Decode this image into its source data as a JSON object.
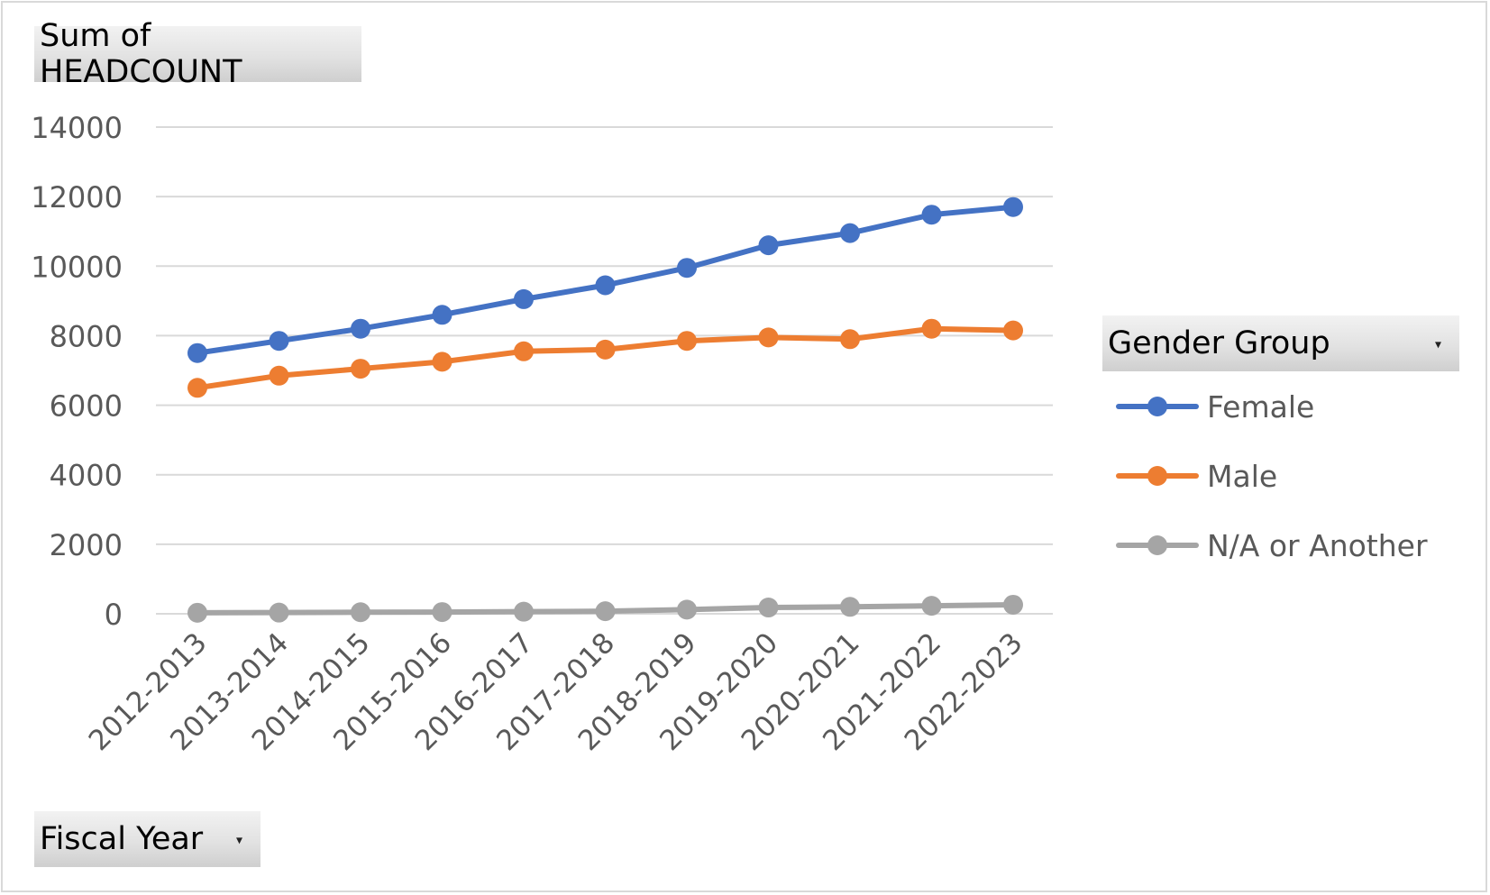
{
  "chart_data": {
    "type": "line",
    "value_field": "Sum of HEADCOUNT",
    "axis_field": "Fiscal Year",
    "legend_field": "Gender Group",
    "categories": [
      "2012-2013",
      "2013-2014",
      "2014-2015",
      "2015-2016",
      "2016-2017",
      "2017-2018",
      "2018-2019",
      "2019-2020",
      "2020-2021",
      "2021-2022",
      "2022-2023"
    ],
    "series": [
      {
        "name": "Female",
        "color": "#4472c4",
        "values": [
          7500,
          7850,
          8200,
          8600,
          9050,
          9450,
          9950,
          10600,
          10950,
          11480,
          11700
        ]
      },
      {
        "name": "Male",
        "color": "#ed7d31",
        "values": [
          6500,
          6850,
          7050,
          7250,
          7550,
          7600,
          7850,
          7950,
          7900,
          8200,
          8150
        ]
      },
      {
        "name": "N/A or Another",
        "color": "#a5a5a5",
        "values": [
          30,
          35,
          45,
          50,
          60,
          75,
          120,
          180,
          200,
          230,
          260
        ]
      }
    ],
    "ylim": [
      0,
      14000
    ],
    "yticks": [
      0,
      2000,
      4000,
      6000,
      8000,
      10000,
      12000,
      14000
    ],
    "grid": true,
    "legend_position": "right"
  },
  "ui": {
    "dropdown_glyph": "▾"
  }
}
